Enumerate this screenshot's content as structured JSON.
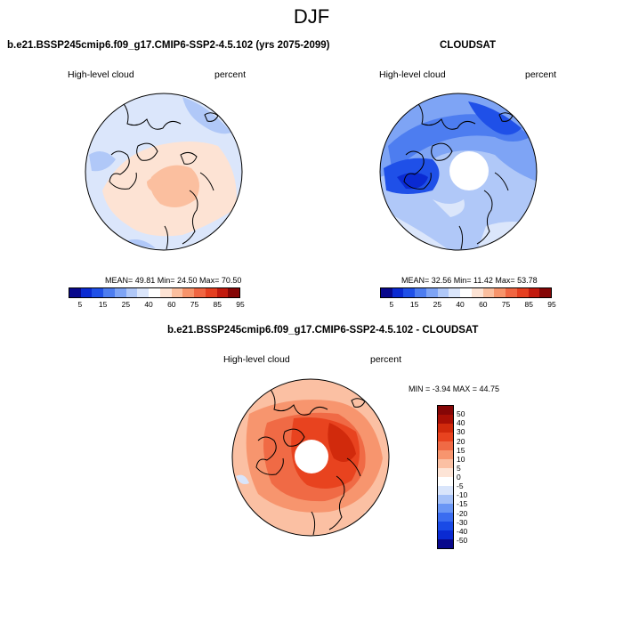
{
  "season": "DJF",
  "panels": [
    {
      "title": "b.e21.BSSP245cmip6.f09_g17.CMIP6-SSP2-4.5.102 (yrs 2075-2099)",
      "left_label": "High-level cloud",
      "right_label": "percent",
      "stats": "MEAN=  49.81  Min=  24.50  Max=  70.50",
      "mean": 49.81,
      "min": 24.5,
      "max": 70.5
    },
    {
      "title": "CLOUDSAT",
      "left_label": "High-level cloud",
      "right_label": "percent",
      "stats": "MEAN=  32.56  Min=  11.42  Max=  53.78",
      "mean": 32.56,
      "min": 11.42,
      "max": 53.78
    },
    {
      "title": "b.e21.BSSP245cmip6.f09_g17.CMIP6-SSP2-4.5.102 - CLOUDSAT",
      "left_label": "High-level cloud",
      "right_label": "percent",
      "stats": "MIN =  -3.94 MAX =  44.75",
      "min": -3.94,
      "max": 44.75
    }
  ],
  "colorbar_abs": {
    "colors": [
      "#08088c",
      "#0a2ad2",
      "#1f50e8",
      "#4d7df0",
      "#7ea4f5",
      "#b0c8f8",
      "#dbe6fb",
      "#ffffff",
      "#fde3d4",
      "#fbbf9f",
      "#f7946b",
      "#f06642",
      "#e53f20",
      "#c21a0e",
      "#850606"
    ],
    "labels": [
      "5",
      "15",
      "25",
      "40",
      "60",
      "75",
      "85",
      "95"
    ]
  },
  "colorbar_diff": {
    "colors": [
      "#08088c",
      "#0a2ad2",
      "#1a4ae6",
      "#3b6cf0",
      "#6a96f5",
      "#a5c1f8",
      "#d9e5fb",
      "#ffffff",
      "#fde4d6",
      "#fbc0a3",
      "#f7956e",
      "#f06a45",
      "#e8431f",
      "#d12a0c",
      "#a80f05",
      "#850606"
    ],
    "labels": [
      "50",
      "40",
      "30",
      "20",
      "15",
      "10",
      "5",
      "0",
      "-5",
      "-10",
      "-15",
      "-20",
      "-30",
      "-40",
      "-50"
    ]
  }
}
